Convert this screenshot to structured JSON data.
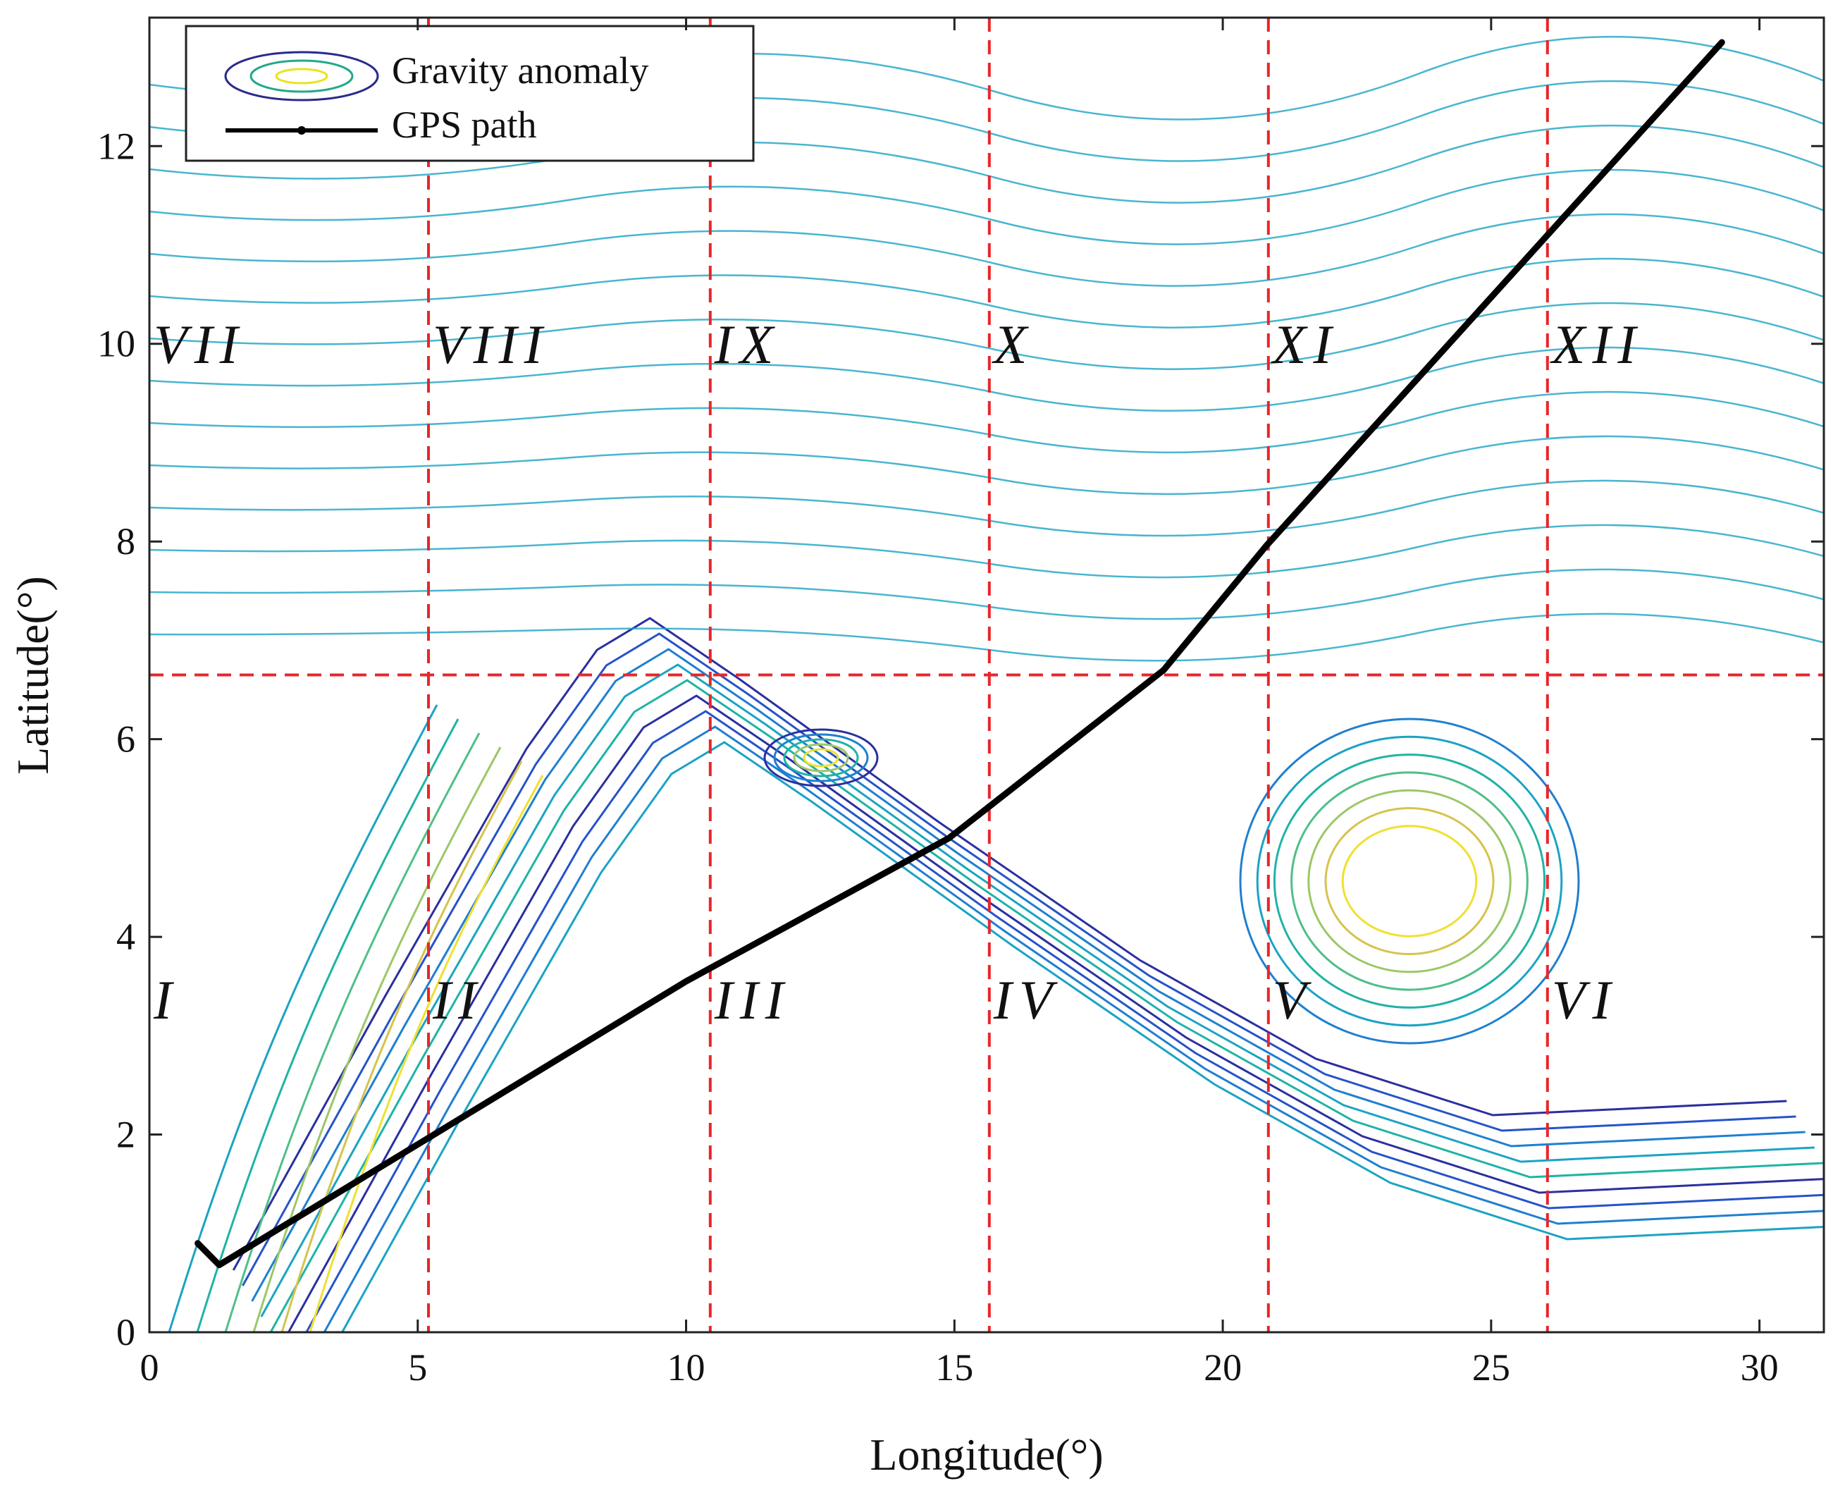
{
  "chart_data": {
    "type": "contour",
    "xlabel": "Longitude(°)",
    "ylabel": "Latitude(°)",
    "xlim": [
      0,
      31.2
    ],
    "ylim": [
      0,
      13.3
    ],
    "xticks": [
      0,
      5,
      10,
      15,
      20,
      25,
      30
    ],
    "yticks": [
      0,
      2,
      4,
      6,
      8,
      10,
      12
    ],
    "series": [
      {
        "name": "Gravity anomaly"
      },
      {
        "name": "GPS path",
        "color": "#000000",
        "x": [
          0.9,
          1.3,
          5.0,
          10.0,
          14.9,
          18.9,
          20.8,
          29.3
        ],
        "y": [
          0.9,
          0.68,
          1.9,
          3.55,
          5.0,
          6.7,
          7.95,
          13.05
        ]
      }
    ],
    "dividers": {
      "x": [
        5.2,
        10.45,
        15.65,
        20.85,
        26.05
      ],
      "y": [
        6.65
      ],
      "color": "#e8262a"
    },
    "regions": [
      "I",
      "II",
      "III",
      "IV",
      "V",
      "VI",
      "VII",
      "VIII",
      "IX",
      "X",
      "XI",
      "XII"
    ]
  }
}
